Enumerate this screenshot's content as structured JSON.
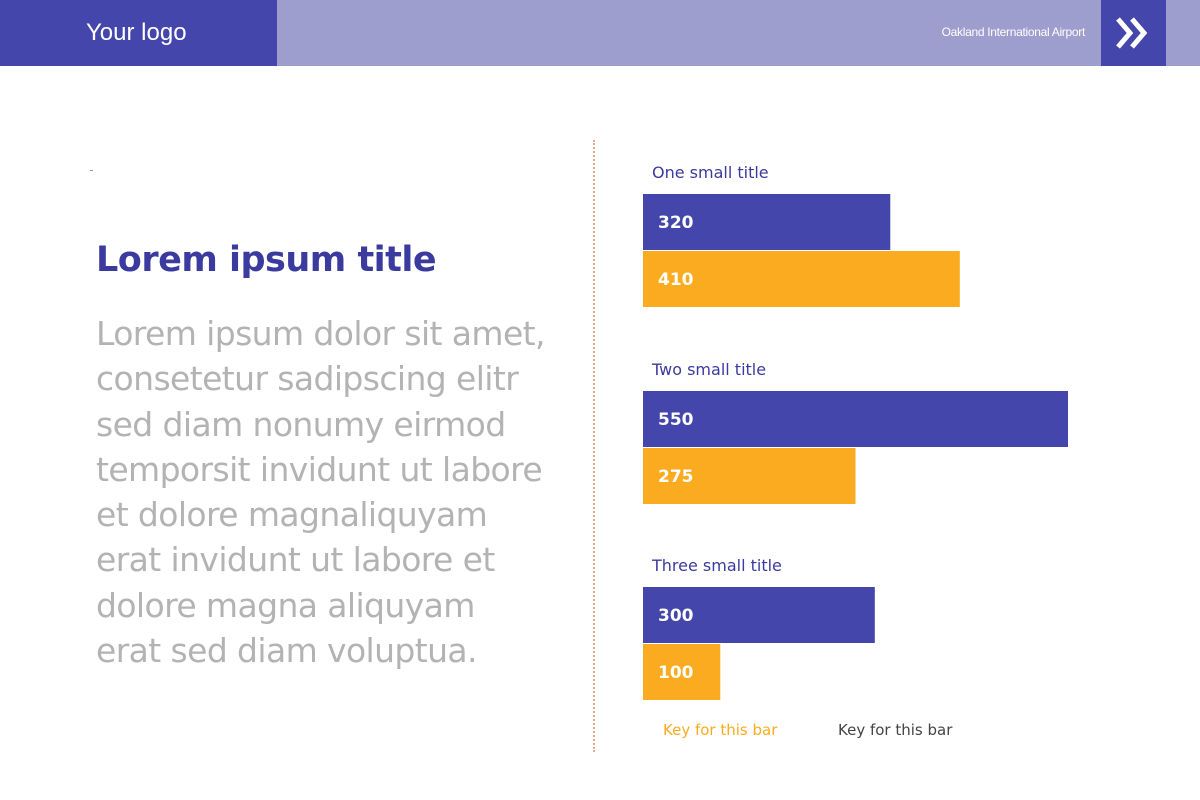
{
  "header": {
    "logo_text": "Your logo",
    "airport_name": "Oakland International Airport",
    "next_icon": "double-chevron-right-icon"
  },
  "content": {
    "title": "Lorem ipsum title",
    "body_lines": [
      "Lorem ipsum dolor sit amet,",
      "consetetur sadipscing elitr",
      "sed diam nonumy eirmod",
      "temporsit invidunt ut labore",
      "et dolore magnaliquyam",
      "erat invidunt ut labore et",
      "dolore magna aliquyam",
      "erat sed diam voluptua."
    ]
  },
  "colors": {
    "primary": "#4446ab",
    "header_bg": "#9d9ecd",
    "accent": "#fbab1f",
    "title": "#3b3a9e",
    "body_text": "#b3b3b3"
  },
  "chart_data": {
    "type": "bar",
    "orientation": "horizontal",
    "categories": [
      "One small title",
      "Two small title",
      "Three small title"
    ],
    "series": [
      {
        "name": "Key for this bar",
        "color": "#4446ab",
        "values": [
          320,
          550,
          300
        ]
      },
      {
        "name": "Key for this bar",
        "color": "#fbab1f",
        "values": [
          410,
          275,
          100
        ]
      }
    ],
    "xlim": [
      0,
      550
    ],
    "grid": false,
    "data_labels": true,
    "legend": [
      {
        "label": "Key for this bar",
        "color": "#fbab1f"
      },
      {
        "label": "Key for this bar",
        "color": "#444444"
      }
    ],
    "legend_placement": "bottom"
  }
}
